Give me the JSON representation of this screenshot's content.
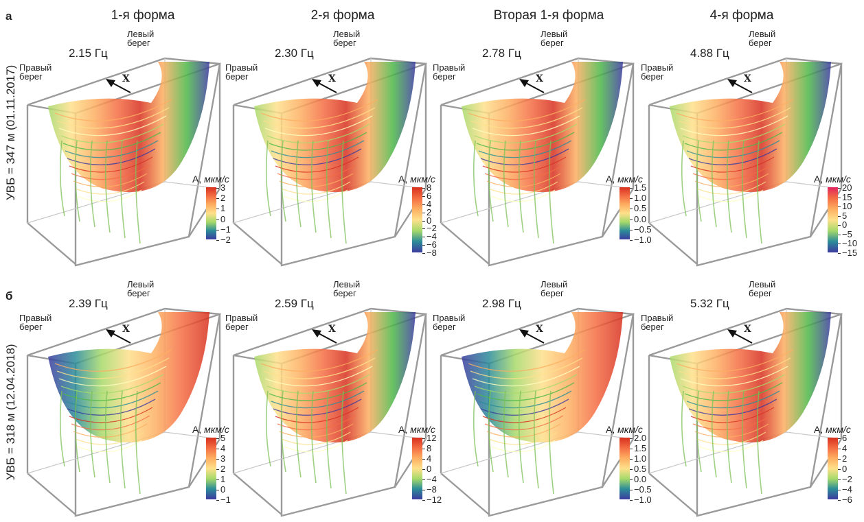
{
  "row_letters": {
    "a": "а",
    "b": "б"
  },
  "row_labels": {
    "a": "УВБ = 347 м (01.11.2017)",
    "b": "УВБ = 318 м (12.04.2018)"
  },
  "columns": [
    "1-я форма",
    "2-я форма",
    "Вторая 1-я форма",
    "4-я форма"
  ],
  "bank_labels": {
    "right": "Правый берег",
    "left": "Левый берег",
    "right_l1": "Правый",
    "right_l2": "берег",
    "left_l1": "Левый",
    "left_l2": "берег"
  },
  "axis_label": "X",
  "colorbar_title_prefix": "A,",
  "colorbar_units": "мкм/с",
  "panels": [
    {
      "row": "a",
      "col": 0,
      "freq": "2.15 Гц",
      "ticks": [
        "3",
        "2",
        "1",
        "0",
        "−1",
        "−2"
      ]
    },
    {
      "row": "a",
      "col": 1,
      "freq": "2.30 Гц",
      "ticks": [
        "8",
        "6",
        "4",
        "2",
        "0",
        "−2",
        "−4",
        "−6",
        "−8"
      ]
    },
    {
      "row": "a",
      "col": 2,
      "freq": "2.78 Гц",
      "ticks": [
        "1.5",
        "1.0",
        "0.5",
        "0.0",
        "−0.5",
        "−1.0"
      ]
    },
    {
      "row": "a",
      "col": 3,
      "freq": "4.88 Гц",
      "ticks": [
        "20",
        "15",
        "10",
        "5",
        "0",
        "−5",
        "−10",
        "−15"
      ]
    },
    {
      "row": "b",
      "col": 0,
      "freq": "2.39 Гц",
      "ticks": [
        "5",
        "4",
        "3",
        "2",
        "1",
        "0",
        "−1"
      ]
    },
    {
      "row": "b",
      "col": 1,
      "freq": "2.59 Гц",
      "ticks": [
        "12",
        "8",
        "4",
        "0",
        "−4",
        "−8",
        "−12"
      ]
    },
    {
      "row": "b",
      "col": 2,
      "freq": "2.98 Гц",
      "ticks": [
        "2.0",
        "1.5",
        "1.0",
        "0.5",
        "0.0",
        "−0.5",
        "−1.0"
      ]
    },
    {
      "row": "b",
      "col": 3,
      "freq": "5.32 Гц",
      "ticks": [
        "6",
        "4",
        "2",
        "0",
        "−2",
        "−4",
        "−6"
      ]
    }
  ],
  "colors": {
    "box_edge": "#9a9a9a",
    "ramp": [
      "#d7301f",
      "#f46d43",
      "#fdae61",
      "#fee08b",
      "#ffffbf",
      "#a6d96a",
      "#4cb848",
      "#2c8c99",
      "#3b3b9e"
    ]
  }
}
